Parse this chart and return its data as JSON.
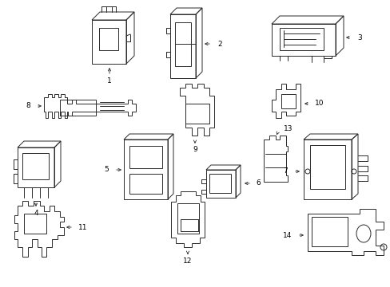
{
  "background_color": "#f5f5f5",
  "line_color": "#2a2a2a",
  "label_color": "#000000",
  "figsize": [
    4.89,
    3.6
  ],
  "dpi": 100,
  "lw": 0.7,
  "font_size": 6.5,
  "arrow_lw": 0.6
}
